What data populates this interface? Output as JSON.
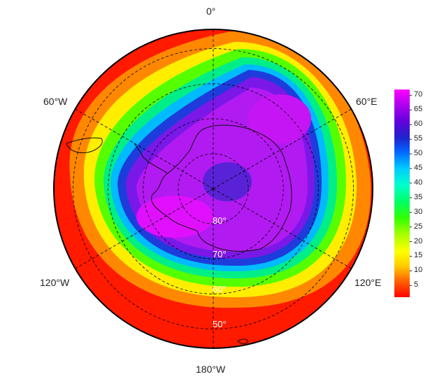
{
  "map": {
    "projection": "south-polar-stereographic",
    "longitude_labels": {
      "top": "0°",
      "upper_left": "60°W",
      "upper_right": "60°E",
      "lower_left": "120°W",
      "lower_right": "120°E",
      "bottom": "180°W"
    },
    "latitude_labels": [
      "80°",
      "70°",
      "60°",
      "50°"
    ],
    "latitude_circles_deg": [
      80,
      70,
      60,
      50
    ],
    "meridians_deg": [
      0,
      60,
      120,
      180,
      240,
      300
    ],
    "grid_style": "dashed",
    "field": {
      "description_of_pattern": "low values over interior, ring of gradient, high at edges",
      "center_value": 60,
      "inner_value": 68,
      "outer_value": 3
    }
  },
  "colorbar": {
    "ticks": [
      "70",
      "65",
      "60",
      "55",
      "50",
      "45",
      "40",
      "35",
      "30",
      "25",
      "20",
      "15",
      "10",
      "5"
    ],
    "min": 1,
    "max": 72,
    "colors": [
      "#ff0000",
      "#ff6600",
      "#ffcc00",
      "#ffff00",
      "#aaff00",
      "#33ff00",
      "#00ff66",
      "#00ffcc",
      "#00ccff",
      "#0066ff",
      "#2222cc",
      "#6600dd",
      "#aa00ee",
      "#ff00ff"
    ]
  }
}
